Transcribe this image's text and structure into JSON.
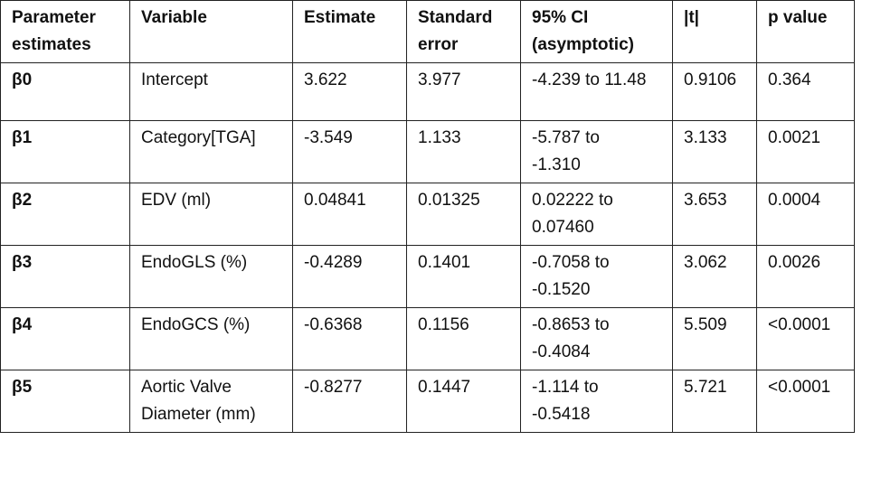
{
  "table": {
    "header": [
      "Parameter estimates",
      "Variable",
      "Estimate",
      "Standard error",
      "95% CI (asymptotic)",
      "|t|",
      "p value"
    ],
    "rows": [
      [
        "β0",
        "Intercept",
        "3.622",
        "3.977",
        "-4.239 to 11.48",
        "0.9106",
        "0.364"
      ],
      [
        "β1",
        "Category[TGA]",
        "-3.549",
        "1.133",
        "-5.787 to -1.310",
        "3.133",
        "0.0021"
      ],
      [
        "β2",
        "EDV (ml)",
        "0.04841",
        "0.01325",
        "0.02222 to 0.07460",
        "3.653",
        "0.0004"
      ],
      [
        "β3",
        "EndoGLS (%)",
        "-0.4289",
        "0.1401",
        "-0.7058 to -0.1520",
        "3.062",
        "0.0026"
      ],
      [
        "β4",
        "EndoGCS (%)",
        "-0.6368",
        "0.1156",
        "-0.8653 to -0.4084",
        "5.509",
        "<0.0001"
      ],
      [
        "β5",
        "Aortic Valve Diameter (mm)",
        "-0.8277",
        "0.1447",
        "-1.114 to -0.5418",
        "5.721",
        "<0.0001"
      ]
    ]
  }
}
